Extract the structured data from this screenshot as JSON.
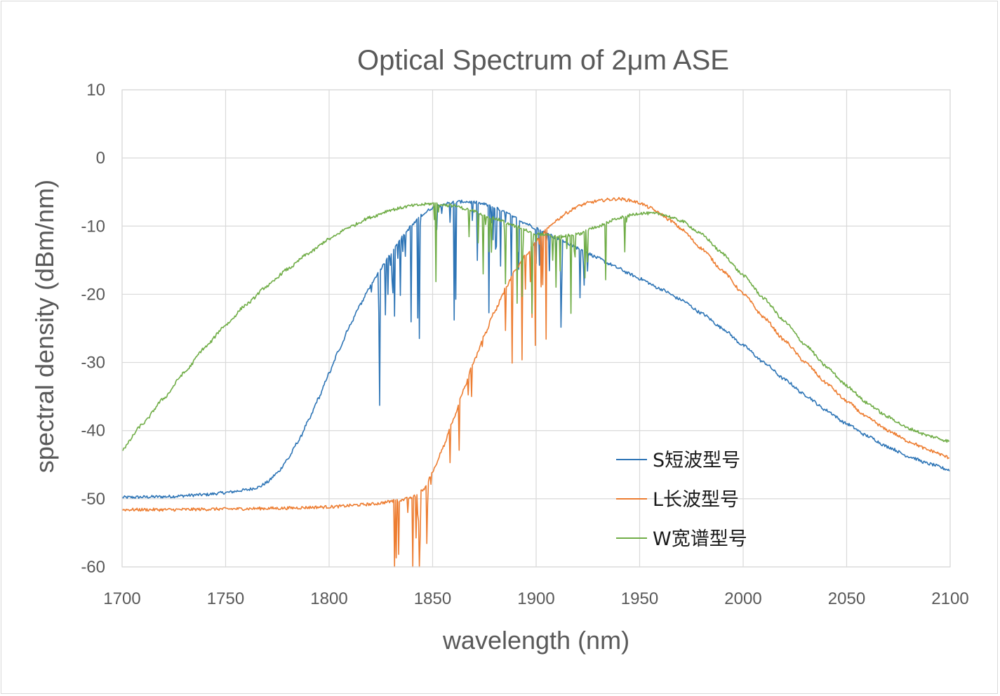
{
  "chart_data": {
    "type": "line",
    "title": "Optical Spectrum of 2μm ASE",
    "xlabel": "wavelength (nm)",
    "ylabel": "spectral density (dBm/nm)",
    "xlim": [
      1700,
      2100
    ],
    "ylim": [
      -60,
      10
    ],
    "x_ticks": [
      "1700",
      "1750",
      "1800",
      "1850",
      "1900",
      "1950",
      "2000",
      "2050",
      "2100"
    ],
    "y_ticks": [
      "10",
      "0",
      "-10",
      "-20",
      "-30",
      "-40",
      "-50",
      "-60"
    ],
    "grid": true,
    "legend_position": "lower-right-inside",
    "series": [
      {
        "name": "S短波型号",
        "color": "#2e75b6",
        "x": [
          1700,
          1720,
          1740,
          1750,
          1760,
          1766,
          1770,
          1775,
          1780,
          1785,
          1790,
          1795,
          1800,
          1805,
          1810,
          1815,
          1820,
          1825,
          1830,
          1835,
          1840,
          1845,
          1850,
          1855,
          1860,
          1865,
          1870,
          1875,
          1880,
          1885,
          1890,
          1895,
          1900,
          1905,
          1910,
          1915,
          1920,
          1925,
          1930,
          1935,
          1940,
          1945,
          1950,
          1960,
          1970,
          1980,
          1990,
          2000,
          2010,
          2020,
          2030,
          2040,
          2050,
          2060,
          2070,
          2080,
          2090,
          2100
        ],
        "values": [
          -49.8,
          -49.7,
          -49.4,
          -49.1,
          -48.7,
          -48.3,
          -47.6,
          -46.2,
          -44.2,
          -41.6,
          -38.6,
          -35.2,
          -31.6,
          -28.0,
          -24.6,
          -21.5,
          -18.8,
          -16.2,
          -13.9,
          -11.7,
          -9.9,
          -8.3,
          -7.3,
          -6.8,
          -6.5,
          -6.4,
          -6.5,
          -6.8,
          -7.3,
          -8.0,
          -8.8,
          -9.6,
          -10.3,
          -11.0,
          -11.8,
          -12.5,
          -13.2,
          -14.0,
          -14.7,
          -15.5,
          -16.2,
          -17.0,
          -17.7,
          -19.2,
          -20.8,
          -22.8,
          -25.0,
          -27.5,
          -30.0,
          -32.5,
          -34.8,
          -37.0,
          -39.0,
          -40.8,
          -42.4,
          -43.8,
          -44.9,
          -45.8
        ]
      },
      {
        "name": "L长波型号",
        "color": "#ed7d31",
        "x": [
          1700,
          1725,
          1750,
          1775,
          1800,
          1820,
          1835,
          1842,
          1846,
          1850,
          1855,
          1860,
          1865,
          1870,
          1875,
          1880,
          1885,
          1890,
          1895,
          1900,
          1905,
          1910,
          1915,
          1920,
          1925,
          1930,
          1935,
          1940,
          1945,
          1950,
          1955,
          1960,
          1965,
          1970,
          1980,
          1990,
          2000,
          2010,
          2020,
          2030,
          2040,
          2050,
          2060,
          2070,
          2080,
          2090,
          2100
        ],
        "values": [
          -51.6,
          -51.6,
          -51.5,
          -51.4,
          -51.2,
          -50.8,
          -50.2,
          -49.6,
          -48.5,
          -46.0,
          -42.5,
          -38.5,
          -34.0,
          -29.8,
          -26.0,
          -22.5,
          -19.2,
          -16.5,
          -14.2,
          -12.2,
          -10.5,
          -9.1,
          -8.0,
          -7.1,
          -6.6,
          -6.3,
          -6.1,
          -6.0,
          -6.2,
          -6.6,
          -7.3,
          -8.2,
          -9.2,
          -10.4,
          -13.3,
          -16.5,
          -19.9,
          -23.4,
          -26.8,
          -30.0,
          -33.0,
          -35.7,
          -38.1,
          -40.0,
          -41.6,
          -42.9,
          -44.0
        ]
      },
      {
        "name": "W宽谱型号",
        "color": "#70ad47",
        "x": [
          1700,
          1710,
          1720,
          1730,
          1740,
          1750,
          1760,
          1770,
          1780,
          1790,
          1800,
          1810,
          1820,
          1830,
          1840,
          1850,
          1860,
          1870,
          1880,
          1890,
          1900,
          1910,
          1920,
          1930,
          1940,
          1950,
          1960,
          1970,
          1980,
          1990,
          2000,
          2010,
          2020,
          2030,
          2040,
          2050,
          2060,
          2070,
          2080,
          2090,
          2100
        ],
        "values": [
          -42.8,
          -39.0,
          -35.3,
          -31.5,
          -27.8,
          -24.5,
          -21.5,
          -18.8,
          -16.3,
          -14.0,
          -11.9,
          -10.1,
          -8.7,
          -7.6,
          -7.0,
          -6.7,
          -7.0,
          -7.8,
          -8.9,
          -10.0,
          -11.1,
          -11.6,
          -11.2,
          -10.0,
          -8.8,
          -8.1,
          -8.2,
          -9.2,
          -11.2,
          -14.0,
          -17.2,
          -20.6,
          -24.0,
          -27.4,
          -30.6,
          -33.4,
          -36.0,
          -38.0,
          -39.7,
          -40.8,
          -41.6
        ]
      }
    ]
  }
}
